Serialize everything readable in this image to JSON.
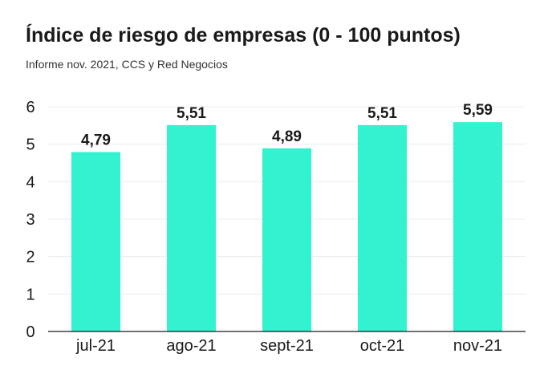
{
  "title": "Índice de riesgo de empresas (0 - 100 puntos)",
  "subtitle": "Informe nov. 2021, CCS y Red Negocios",
  "chart_data": {
    "type": "bar",
    "title": "Índice de riesgo de empresas (0 - 100 puntos)",
    "subtitle": "Informe nov. 2021, CCS y Red Negocios",
    "categories": [
      "jul-21",
      "ago-21",
      "sept-21",
      "oct-21",
      "nov-21"
    ],
    "values": [
      4.79,
      5.51,
      4.89,
      5.51,
      5.59
    ],
    "value_labels": [
      "4,79",
      "5,51",
      "4,89",
      "5,51",
      "5,59"
    ],
    "y_ticks": [
      "0",
      "1",
      "2",
      "3",
      "4",
      "5",
      "6"
    ],
    "ylim": [
      0,
      6
    ],
    "xlabel": "",
    "ylabel": "",
    "grid": true,
    "legend": "none",
    "bar_color": "#33f2cf",
    "grid_color": "#e9ecef",
    "axis_color": "#1a1a1a"
  }
}
